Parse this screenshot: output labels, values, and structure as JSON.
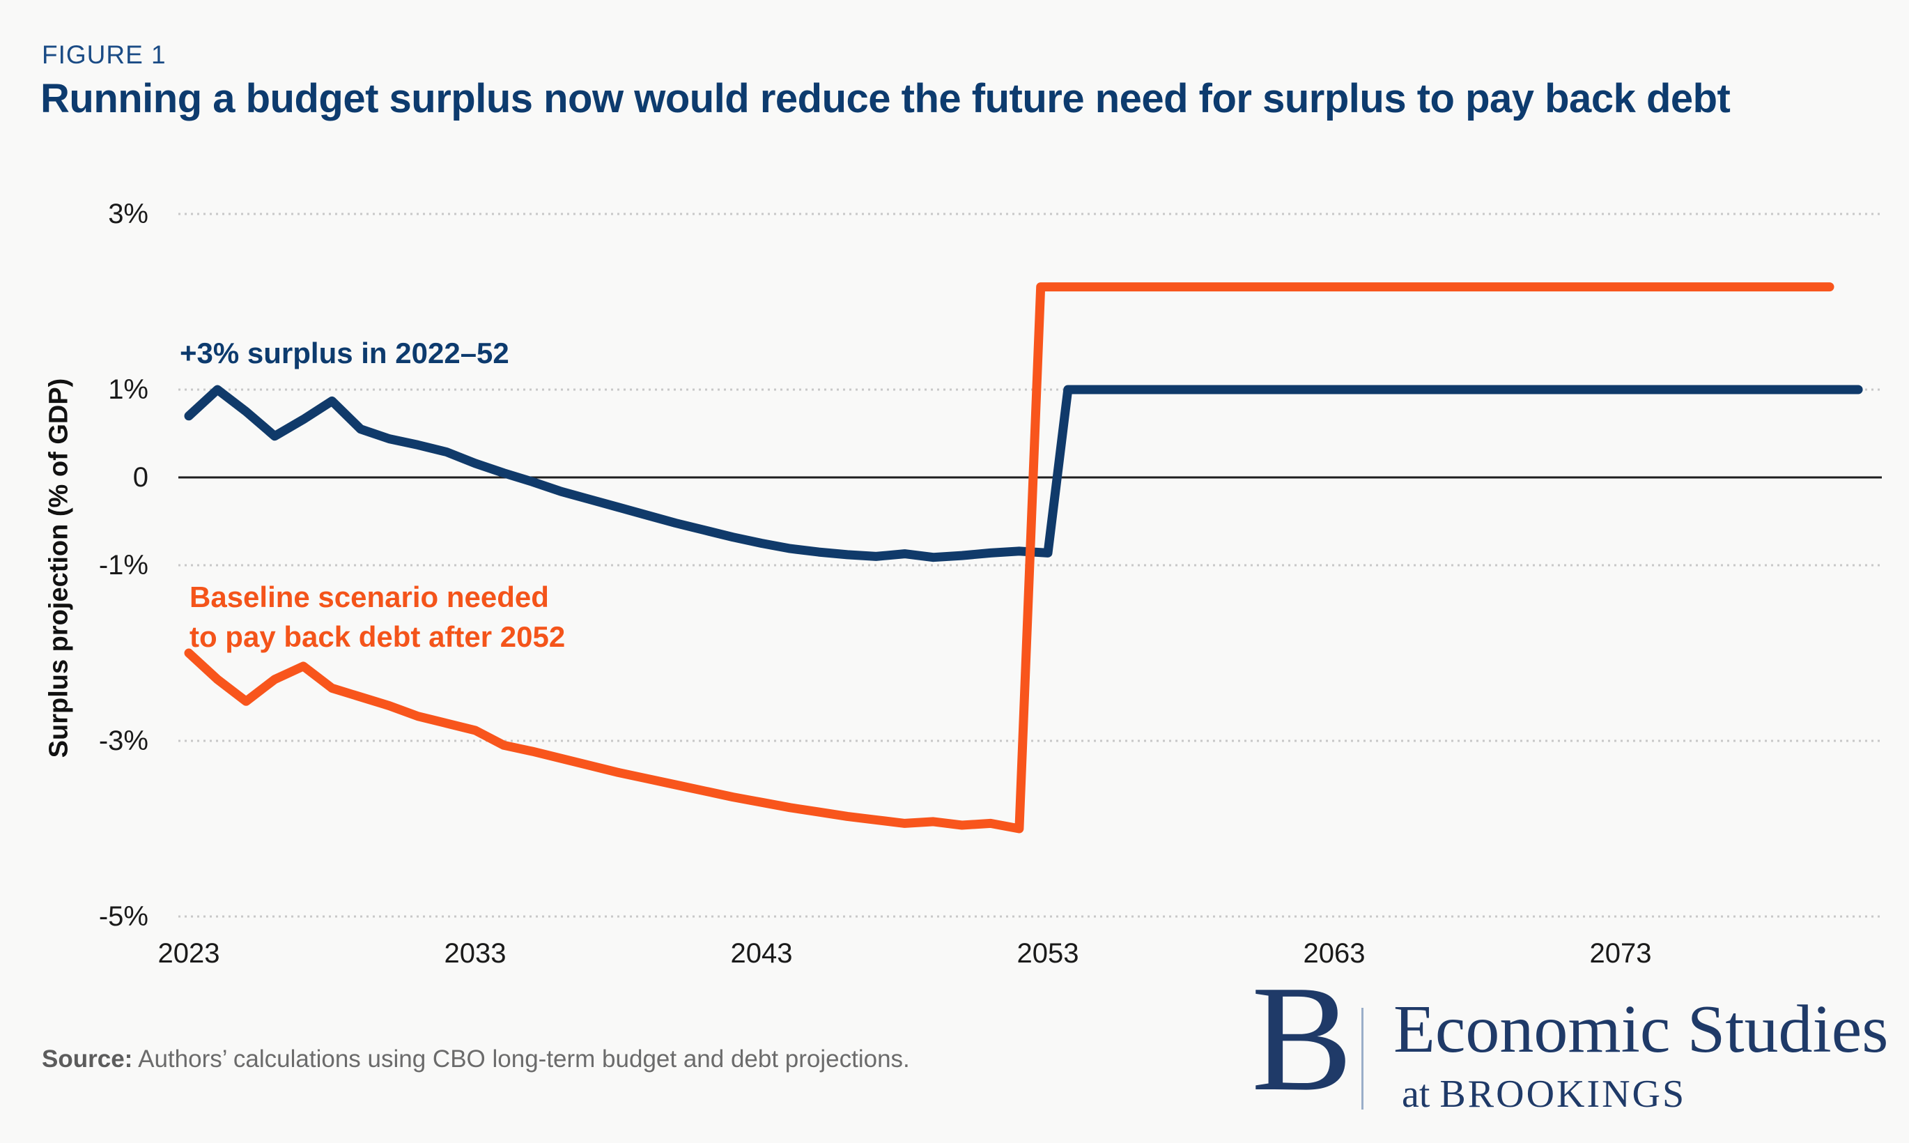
{
  "page": {
    "background": "#f9f9f8"
  },
  "header": {
    "figure_label": "FIGURE 1",
    "title": "Running a budget surplus now would reduce the future need for surplus to pay back debt"
  },
  "chart_data": {
    "type": "line",
    "title": "Running a budget surplus now would reduce the future need for surplus to pay back debt",
    "xlabel": "",
    "ylabel": "Surplus projection (% of GDP)",
    "xlim": [
      2022.6,
      2082
    ],
    "ylim": [
      -5,
      3
    ],
    "grid": "dotted horizontal lines at labeled ticks, solid line at 0",
    "legend_position": "inline annotations next to lines",
    "x_ticks": [
      "2023",
      "2033",
      "2043",
      "2053",
      "2063",
      "2073"
    ],
    "x_tick_years": [
      2023,
      2033,
      2043,
      2053,
      2063,
      2073
    ],
    "y_ticks": [
      {
        "label": "3%",
        "value": 3
      },
      {
        "label": "1%",
        "value": 1
      },
      {
        "label": "0",
        "value": 0
      },
      {
        "label": "-1%",
        "value": -1
      },
      {
        "label": "-3%",
        "value": -3
      },
      {
        "label": "-5%",
        "value": -5
      }
    ],
    "series": [
      {
        "name": "+3% surplus in 2022–52",
        "color": "#103a6a",
        "points": [
          [
            2023,
            0.7
          ],
          [
            2024,
            1.0
          ],
          [
            2025,
            0.75
          ],
          [
            2026,
            0.47
          ],
          [
            2027,
            0.66
          ],
          [
            2028,
            0.87
          ],
          [
            2029,
            0.55
          ],
          [
            2030,
            0.44
          ],
          [
            2031,
            0.37
          ],
          [
            2032,
            0.29
          ],
          [
            2033,
            0.16
          ],
          [
            2034,
            0.05
          ],
          [
            2035,
            -0.05
          ],
          [
            2036,
            -0.16
          ],
          [
            2037,
            -0.25
          ],
          [
            2038,
            -0.34
          ],
          [
            2039,
            -0.43
          ],
          [
            2040,
            -0.52
          ],
          [
            2041,
            -0.6
          ],
          [
            2042,
            -0.68
          ],
          [
            2043,
            -0.75
          ],
          [
            2044,
            -0.81
          ],
          [
            2045,
            -0.85
          ],
          [
            2046,
            -0.88
          ],
          [
            2047,
            -0.9
          ],
          [
            2048,
            -0.87
          ],
          [
            2049,
            -0.91
          ],
          [
            2050,
            -0.89
          ],
          [
            2051,
            -0.86
          ],
          [
            2052,
            -0.84
          ],
          [
            2053,
            -0.86
          ],
          [
            2053.7,
            1.0
          ],
          [
            2081.3,
            1.0
          ]
        ]
      },
      {
        "name": "Baseline scenario needed to pay back debt after 2052",
        "color": "#f8551c",
        "points": [
          [
            2023,
            -2.0
          ],
          [
            2024,
            -2.3
          ],
          [
            2025,
            -2.55
          ],
          [
            2026,
            -2.3
          ],
          [
            2027,
            -2.15
          ],
          [
            2028,
            -2.4
          ],
          [
            2029,
            -2.5
          ],
          [
            2030,
            -2.6
          ],
          [
            2031,
            -2.72
          ],
          [
            2032,
            -2.8
          ],
          [
            2033,
            -2.88
          ],
          [
            2034,
            -3.05
          ],
          [
            2035,
            -3.12
          ],
          [
            2036,
            -3.2
          ],
          [
            2037,
            -3.28
          ],
          [
            2038,
            -3.36
          ],
          [
            2039,
            -3.43
          ],
          [
            2040,
            -3.5
          ],
          [
            2041,
            -3.57
          ],
          [
            2042,
            -3.64
          ],
          [
            2043,
            -3.7
          ],
          [
            2044,
            -3.76
          ],
          [
            2045,
            -3.81
          ],
          [
            2046,
            -3.86
          ],
          [
            2047,
            -3.9
          ],
          [
            2048,
            -3.94
          ],
          [
            2049,
            -3.92
          ],
          [
            2050,
            -3.96
          ],
          [
            2051,
            -3.94
          ],
          [
            2052,
            -4.0
          ],
          [
            2052.75,
            2.17
          ],
          [
            2080.3,
            2.17
          ]
        ]
      }
    ],
    "colors": {
      "grid": "#c8c8c8",
      "zero_line": "#1f1f1f",
      "tick_text": "#1a1a1a"
    }
  },
  "annotations": {
    "surplus": {
      "text": "+3% surplus in 2022–52"
    },
    "baseline": {
      "line1": "Baseline scenario needed",
      "line2": "to pay back debt after 2052"
    }
  },
  "source": {
    "label": "Source:",
    "text": " Authors’ calculations using CBO long-term budget and debt projections."
  },
  "logo": {
    "letter": "B",
    "line1": "Economic Studies",
    "at": "at ",
    "name": "BROOKINGS"
  }
}
